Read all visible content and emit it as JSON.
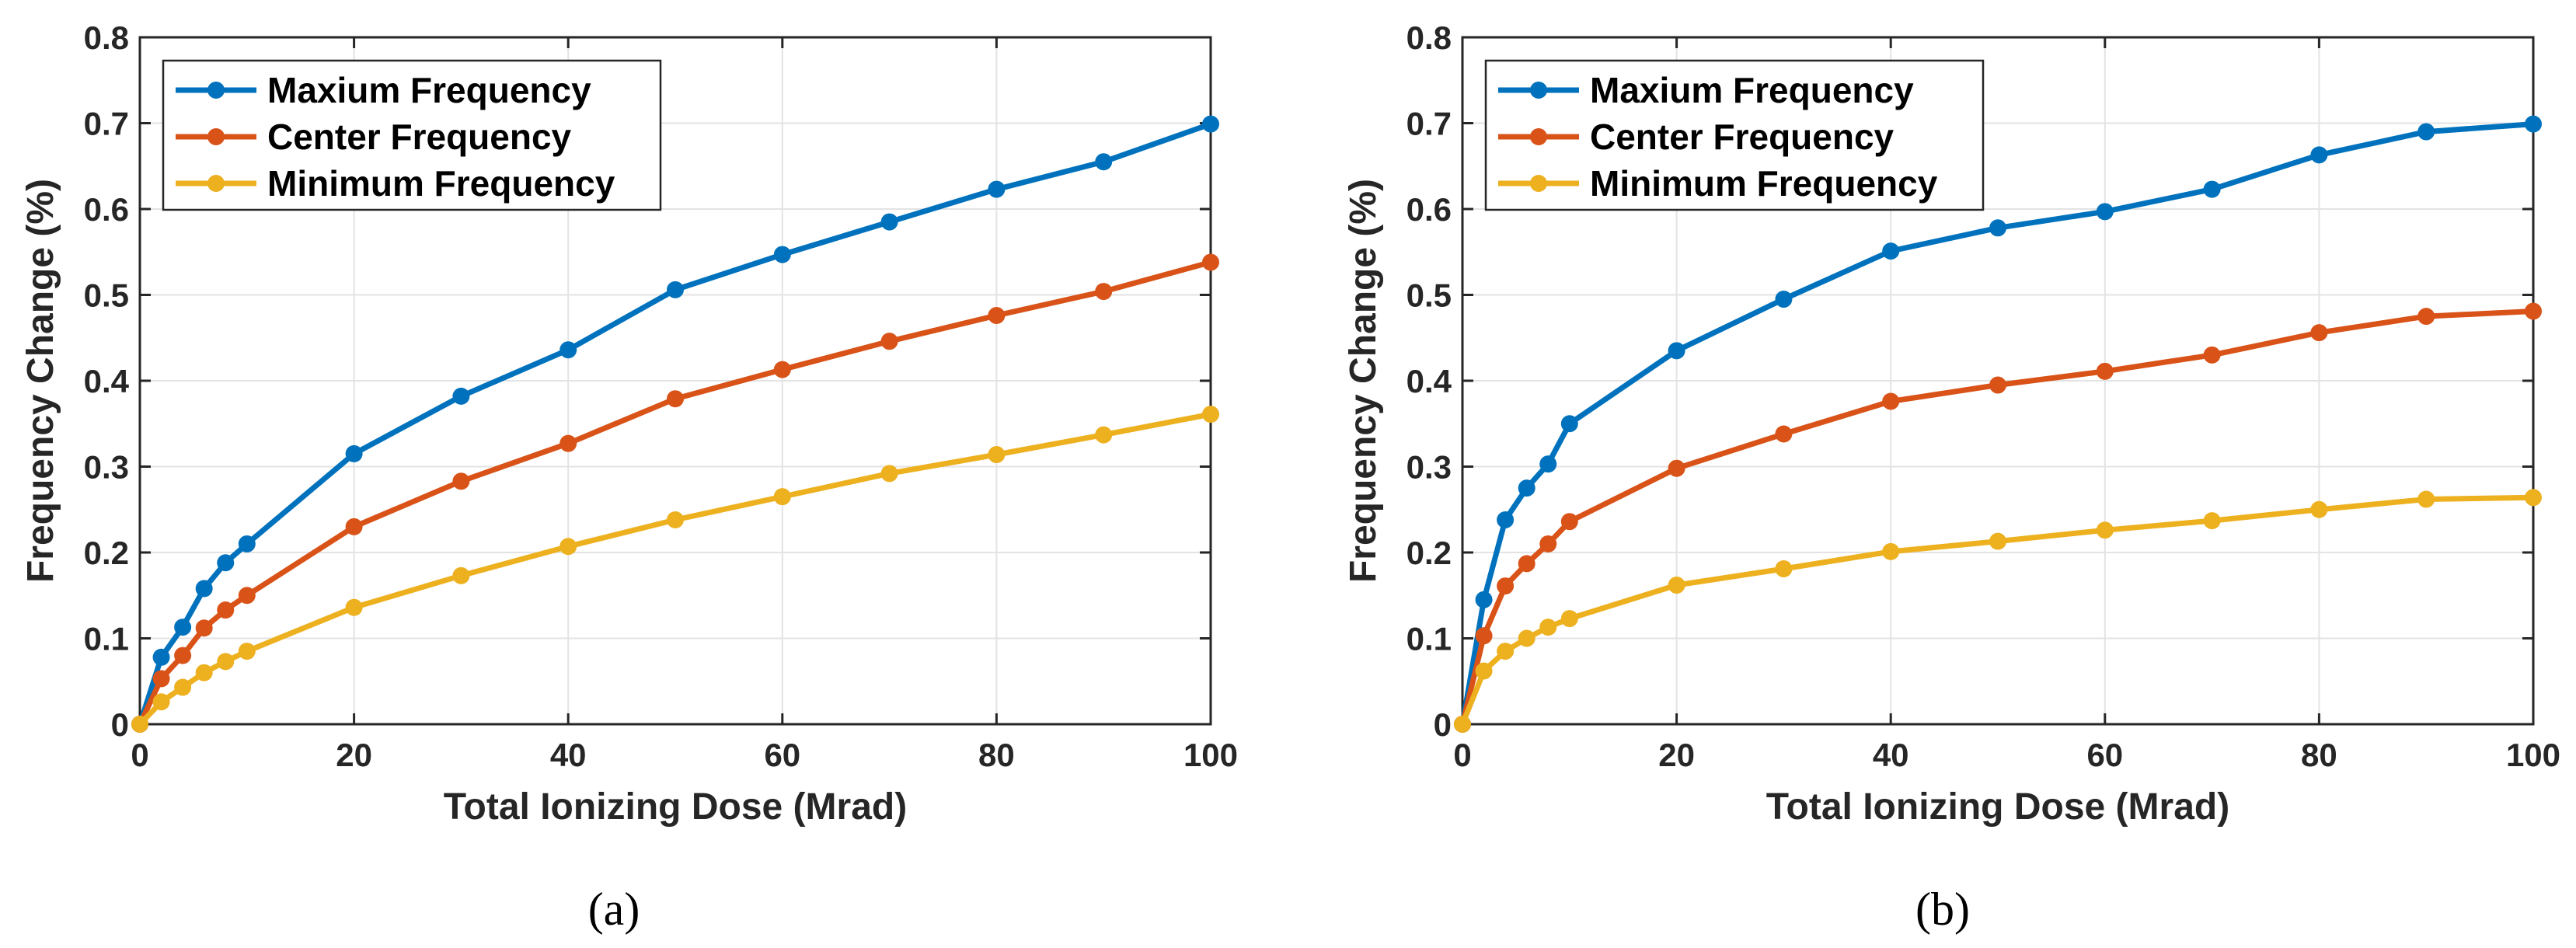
{
  "colors": {
    "max": "#0072BD",
    "center": "#D95319",
    "min": "#EDB120",
    "axis": "#262626",
    "grid": "#e3e3e3"
  },
  "chart_data": [
    {
      "type": "line",
      "caption": "(a)",
      "xlabel": "Total Ionizing Dose (Mrad)",
      "ylabel": "Frequency Change (%)",
      "xlim": [
        0,
        100
      ],
      "ylim": [
        0,
        0.8
      ],
      "xticks": [
        0,
        20,
        40,
        60,
        80,
        100
      ],
      "xtick_labels": [
        "0",
        "20",
        "40",
        "60",
        "80",
        "100"
      ],
      "yticks": [
        0,
        0.1,
        0.2,
        0.3,
        0.4,
        0.5,
        0.6,
        0.7,
        0.8
      ],
      "ytick_labels": [
        "0",
        "0.1",
        "0.2",
        "0.3",
        "0.4",
        "0.5",
        "0.6",
        "0.7",
        "0.8"
      ],
      "grid": true,
      "legend_position": "top-left",
      "x": [
        0,
        2,
        4,
        6,
        8,
        10,
        20,
        30,
        40,
        50,
        60,
        70,
        80,
        90,
        100
      ],
      "series": [
        {
          "name": "Maxium Frequency",
          "color_key": "max",
          "values": [
            0,
            0.078,
            0.113,
            0.158,
            0.188,
            0.21,
            0.315,
            0.382,
            0.436,
            0.506,
            0.547,
            0.585,
            0.623,
            0.655,
            0.699
          ]
        },
        {
          "name": "Center Frequency",
          "color_key": "center",
          "values": [
            0,
            0.053,
            0.08,
            0.112,
            0.133,
            0.15,
            0.23,
            0.283,
            0.327,
            0.379,
            0.413,
            0.446,
            0.476,
            0.504,
            0.538
          ]
        },
        {
          "name": "Minimum Frequency",
          "color_key": "min",
          "values": [
            0,
            0.026,
            0.043,
            0.06,
            0.073,
            0.085,
            0.136,
            0.173,
            0.207,
            0.238,
            0.265,
            0.292,
            0.314,
            0.337,
            0.361
          ]
        }
      ]
    },
    {
      "type": "line",
      "caption": "(b)",
      "xlabel": "Total Ionizing Dose (Mrad)",
      "ylabel": "Frequency Change (%)",
      "xlim": [
        0,
        100
      ],
      "ylim": [
        0,
        0.8
      ],
      "xticks": [
        0,
        20,
        40,
        60,
        80,
        100
      ],
      "xtick_labels": [
        "0",
        "20",
        "40",
        "60",
        "80",
        "100"
      ],
      "yticks": [
        0,
        0.1,
        0.2,
        0.3,
        0.4,
        0.5,
        0.6,
        0.7,
        0.8
      ],
      "ytick_labels": [
        "0",
        "0.1",
        "0.2",
        "0.3",
        "0.4",
        "0.5",
        "0.6",
        "0.7",
        "0.8"
      ],
      "grid": true,
      "legend_position": "top-left",
      "x": [
        0,
        2,
        4,
        6,
        8,
        10,
        20,
        30,
        40,
        50,
        60,
        70,
        80,
        90,
        100
      ],
      "series": [
        {
          "name": "Maxium Frequency",
          "color_key": "max",
          "values": [
            0,
            0.145,
            0.238,
            0.275,
            0.303,
            0.35,
            0.435,
            0.495,
            0.551,
            0.578,
            0.597,
            0.623,
            0.663,
            0.69,
            0.699
          ]
        },
        {
          "name": "Center Frequency",
          "color_key": "center",
          "values": [
            0,
            0.103,
            0.161,
            0.187,
            0.21,
            0.236,
            0.298,
            0.338,
            0.376,
            0.395,
            0.411,
            0.43,
            0.456,
            0.475,
            0.481
          ]
        },
        {
          "name": "Minimum Frequency",
          "color_key": "min",
          "values": [
            0,
            0.062,
            0.085,
            0.1,
            0.113,
            0.123,
            0.162,
            0.181,
            0.201,
            0.213,
            0.226,
            0.237,
            0.25,
            0.262,
            0.264
          ]
        }
      ]
    }
  ]
}
